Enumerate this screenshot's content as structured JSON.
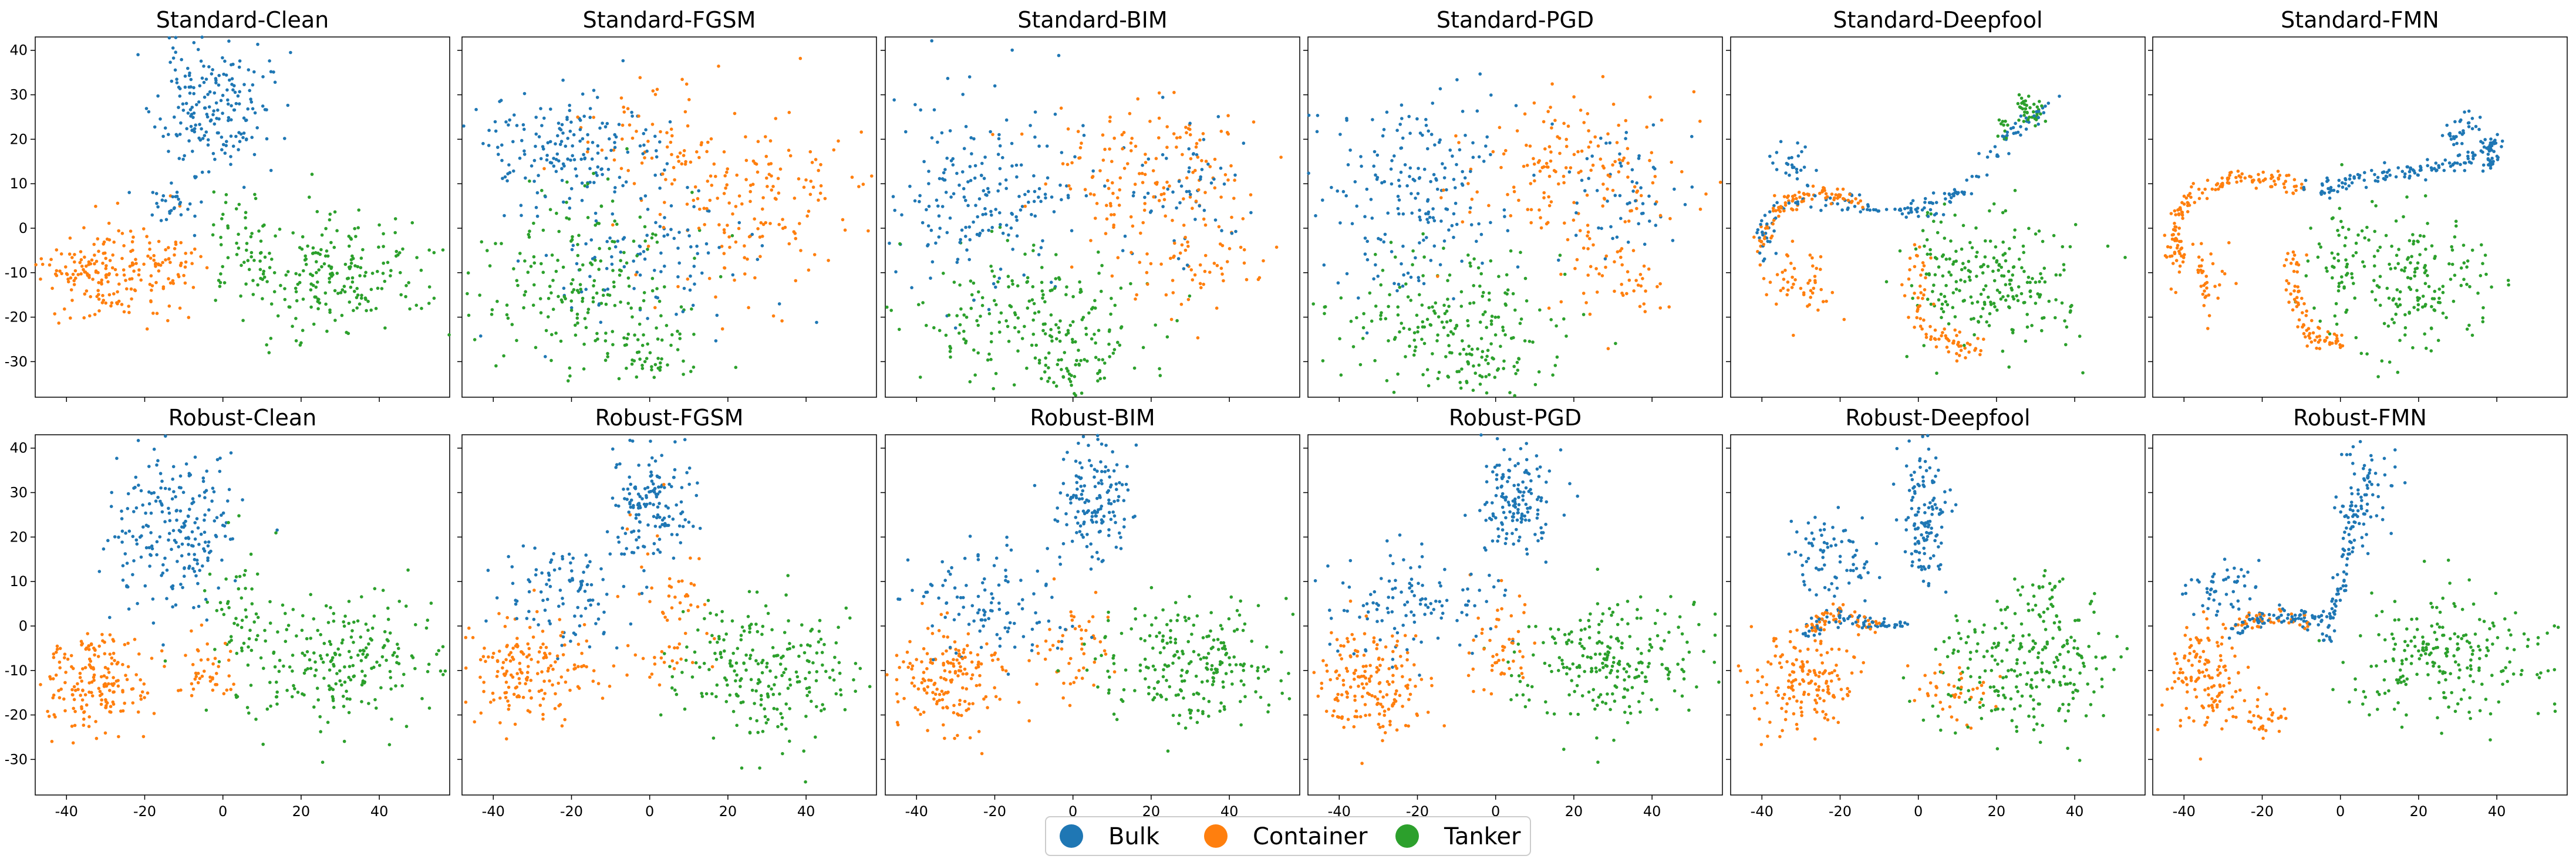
{
  "chart_data": {
    "type": "scatter",
    "layout": "2x6 grid of t-SNE embeddings, shared x and y axes",
    "xlim": [
      -48,
      58
    ],
    "ylim": [
      -38,
      43
    ],
    "xticks": [
      -40,
      -20,
      0,
      20,
      40
    ],
    "yticks": [
      -30,
      -20,
      -10,
      0,
      10,
      20,
      30,
      40
    ],
    "legend": {
      "placement": "bottom-center",
      "entries": [
        {
          "label": "Bulk",
          "color": "#1f77b4"
        },
        {
          "label": "Container",
          "color": "#ff7f0e"
        },
        {
          "label": "Tanker",
          "color": "#2ca02c"
        }
      ]
    },
    "panels": [
      {
        "title": "Standard-Clean",
        "row": 0,
        "col": 0,
        "seed": 11,
        "clusters": [
          {
            "class": "Bulk",
            "cx": -3,
            "cy": 27,
            "sx": 7,
            "sy": 7,
            "n": 200
          },
          {
            "class": "Bulk",
            "cx": -14,
            "cy": 5,
            "sx": 4,
            "sy": 4,
            "n": 30
          },
          {
            "class": "Container",
            "cx": -30,
            "cy": -10,
            "sx": 8,
            "sy": 5,
            "n": 180
          },
          {
            "class": "Container",
            "cx": -12,
            "cy": -7,
            "sx": 4,
            "sy": 5,
            "n": 40
          },
          {
            "class": "Tanker",
            "cx": 28,
            "cy": -10,
            "sx": 13,
            "sy": 7,
            "n": 220
          },
          {
            "class": "Tanker",
            "cx": 3,
            "cy": -2,
            "sx": 4,
            "sy": 6,
            "n": 40
          }
        ]
      },
      {
        "title": "Standard-FGSM",
        "row": 0,
        "col": 1,
        "seed": 23,
        "clusters": [
          {
            "class": "Bulk",
            "cx": -22,
            "cy": 18,
            "sx": 12,
            "sy": 6,
            "n": 160
          },
          {
            "class": "Bulk",
            "cx": -5,
            "cy": -5,
            "sx": 14,
            "sy": 10,
            "n": 120
          },
          {
            "class": "Container",
            "cx": 25,
            "cy": 5,
            "sx": 12,
            "sy": 10,
            "n": 160
          },
          {
            "class": "Container",
            "cx": 0,
            "cy": 20,
            "sx": 10,
            "sy": 6,
            "n": 60
          },
          {
            "class": "Tanker",
            "cx": -18,
            "cy": -12,
            "sx": 14,
            "sy": 10,
            "n": 200
          },
          {
            "class": "Tanker",
            "cx": 0,
            "cy": -28,
            "sx": 6,
            "sy": 4,
            "n": 50
          }
        ]
      },
      {
        "title": "Standard-BIM",
        "row": 0,
        "col": 2,
        "seed": 37,
        "clusters": [
          {
            "class": "Bulk",
            "cx": -22,
            "cy": 8,
            "sx": 12,
            "sy": 11,
            "n": 200
          },
          {
            "class": "Bulk",
            "cx": 30,
            "cy": 8,
            "sx": 9,
            "sy": 7,
            "n": 60
          },
          {
            "class": "Container",
            "cx": 20,
            "cy": 12,
            "sx": 14,
            "sy": 9,
            "n": 160
          },
          {
            "class": "Container",
            "cx": 30,
            "cy": -10,
            "sx": 8,
            "sy": 5,
            "n": 50
          },
          {
            "class": "Tanker",
            "cx": -10,
            "cy": -20,
            "sx": 16,
            "sy": 8,
            "n": 200
          },
          {
            "class": "Tanker",
            "cx": -2,
            "cy": -32,
            "sx": 5,
            "sy": 3,
            "n": 40
          }
        ]
      },
      {
        "title": "Standard-PGD",
        "row": 0,
        "col": 3,
        "seed": 53,
        "clusters": [
          {
            "class": "Bulk",
            "cx": -22,
            "cy": 8,
            "sx": 12,
            "sy": 11,
            "n": 200
          },
          {
            "class": "Bulk",
            "cx": 32,
            "cy": 8,
            "sx": 8,
            "sy": 7,
            "n": 60
          },
          {
            "class": "Container",
            "cx": 20,
            "cy": 12,
            "sx": 14,
            "sy": 9,
            "n": 160
          },
          {
            "class": "Container",
            "cx": 30,
            "cy": -10,
            "sx": 8,
            "sy": 5,
            "n": 50
          },
          {
            "class": "Tanker",
            "cx": -10,
            "cy": -20,
            "sx": 16,
            "sy": 8,
            "n": 200
          },
          {
            "class": "Tanker",
            "cx": -4,
            "cy": -32,
            "sx": 5,
            "sy": 3,
            "n": 40
          }
        ]
      },
      {
        "title": "Standard-Deepfool",
        "row": 0,
        "col": 4,
        "seed": 71,
        "curves": [
          {
            "class": "Bulk",
            "n": 160,
            "spread": 1.2,
            "points": [
              [
                -38,
                -8
              ],
              [
                -40,
                0
              ],
              [
                -35,
                6
              ],
              [
                -20,
                6
              ],
              [
                -5,
                4
              ],
              [
                5,
                5
              ],
              [
                15,
                12
              ],
              [
                25,
                22
              ],
              [
                33,
                28
              ]
            ]
          },
          {
            "class": "Container",
            "n": 90,
            "spread": 1.2,
            "points": [
              [
                -40,
                -5
              ],
              [
                -36,
                5
              ],
              [
                -25,
                8
              ],
              [
                -15,
                6
              ]
            ]
          },
          {
            "class": "Container",
            "n": 80,
            "spread": 1.4,
            "points": [
              [
                0,
                -5
              ],
              [
                -1,
                -15
              ],
              [
                3,
                -24
              ],
              [
                10,
                -27
              ],
              [
                15,
                -27
              ]
            ]
          },
          {
            "class": "Tanker",
            "n": 50,
            "spread": 1.5,
            "points": [
              [
                20,
                20
              ],
              [
                28,
                28
              ],
              [
                30,
                25
              ]
            ]
          }
        ],
        "clusters": [
          {
            "class": "Bulk",
            "cx": -33,
            "cy": 15,
            "sx": 3,
            "sy": 3,
            "n": 25
          },
          {
            "class": "Container",
            "cx": -30,
            "cy": -12,
            "sx": 5,
            "sy": 4,
            "n": 50
          },
          {
            "class": "Tanker",
            "cx": 22,
            "cy": -12,
            "sx": 10,
            "sy": 7,
            "n": 180
          },
          {
            "class": "Tanker",
            "cx": 5,
            "cy": -8,
            "sx": 4,
            "sy": 7,
            "n": 50
          }
        ]
      },
      {
        "title": "Standard-FMN",
        "row": 0,
        "col": 5,
        "seed": 89,
        "curves": [
          {
            "class": "Container",
            "n": 140,
            "spread": 1.0,
            "points": [
              [
                -42,
                -8
              ],
              [
                -42,
                2
              ],
              [
                -38,
                8
              ],
              [
                -28,
                11
              ],
              [
                -18,
                11
              ],
              [
                -10,
                9
              ]
            ]
          },
          {
            "class": "Bulk",
            "n": 160,
            "spread": 1.0,
            "points": [
              [
                -8,
                8
              ],
              [
                5,
                11
              ],
              [
                20,
                13
              ],
              [
                32,
                15
              ],
              [
                40,
                20
              ],
              [
                38,
                14
              ]
            ]
          },
          {
            "class": "Container",
            "n": 80,
            "spread": 1.3,
            "points": [
              [
                -12,
                -5
              ],
              [
                -12,
                -15
              ],
              [
                -8,
                -24
              ],
              [
                0,
                -26
              ]
            ]
          },
          {
            "class": "Bulk",
            "n": 30,
            "spread": 1.5,
            "points": [
              [
                28,
                20
              ],
              [
                34,
                24
              ]
            ]
          }
        ],
        "clusters": [
          {
            "class": "Container",
            "cx": -36,
            "cy": -10,
            "sx": 4,
            "sy": 4,
            "n": 40
          },
          {
            "class": "Tanker",
            "cx": 18,
            "cy": -12,
            "sx": 10,
            "sy": 8,
            "n": 180
          },
          {
            "class": "Tanker",
            "cx": 0,
            "cy": -8,
            "sx": 4,
            "sy": 7,
            "n": 40
          }
        ]
      },
      {
        "title": "Robust-Clean",
        "row": 1,
        "col": 0,
        "seed": 101,
        "clusters": [
          {
            "class": "Bulk",
            "cx": -12,
            "cy": 22,
            "sx": 8,
            "sy": 9,
            "n": 220
          },
          {
            "class": "Container",
            "cx": -32,
            "cy": -12,
            "sx": 7,
            "sy": 6,
            "n": 190
          },
          {
            "class": "Container",
            "cx": -4,
            "cy": -10,
            "sx": 4,
            "sy": 5,
            "n": 40
          },
          {
            "class": "Tanker",
            "cx": 30,
            "cy": -8,
            "sx": 13,
            "sy": 7,
            "n": 230
          },
          {
            "class": "Tanker",
            "cx": 5,
            "cy": 2,
            "sx": 4,
            "sy": 8,
            "n": 50
          }
        ]
      },
      {
        "title": "Robust-FGSM",
        "row": 1,
        "col": 1,
        "seed": 131,
        "clusters": [
          {
            "class": "Bulk",
            "cx": 0,
            "cy": 28,
            "sx": 5,
            "sy": 7,
            "n": 150
          },
          {
            "class": "Bulk",
            "cx": -22,
            "cy": 8,
            "sx": 8,
            "sy": 6,
            "n": 100
          },
          {
            "class": "Container",
            "cx": -30,
            "cy": -10,
            "sx": 8,
            "sy": 6,
            "n": 170
          },
          {
            "class": "Container",
            "cx": 5,
            "cy": 2,
            "sx": 5,
            "sy": 8,
            "n": 60
          },
          {
            "class": "Tanker",
            "cx": 30,
            "cy": -10,
            "sx": 12,
            "sy": 8,
            "n": 230
          }
        ]
      },
      {
        "title": "Robust-BIM",
        "row": 1,
        "col": 2,
        "seed": 157,
        "clusters": [
          {
            "class": "Bulk",
            "cx": 5,
            "cy": 28,
            "sx": 5,
            "sy": 7,
            "n": 150
          },
          {
            "class": "Bulk",
            "cx": -22,
            "cy": 5,
            "sx": 10,
            "sy": 7,
            "n": 110
          },
          {
            "class": "Container",
            "cx": -32,
            "cy": -12,
            "sx": 7,
            "sy": 6,
            "n": 170
          },
          {
            "class": "Container",
            "cx": 0,
            "cy": -5,
            "sx": 4,
            "sy": 6,
            "n": 50
          },
          {
            "class": "Tanker",
            "cx": 30,
            "cy": -8,
            "sx": 12,
            "sy": 7,
            "n": 230
          }
        ]
      },
      {
        "title": "Robust-PGD",
        "row": 1,
        "col": 3,
        "seed": 181,
        "clusters": [
          {
            "class": "Bulk",
            "cx": 5,
            "cy": 28,
            "sx": 5,
            "sy": 7,
            "n": 150
          },
          {
            "class": "Bulk",
            "cx": -22,
            "cy": 5,
            "sx": 10,
            "sy": 7,
            "n": 110
          },
          {
            "class": "Container",
            "cx": -32,
            "cy": -12,
            "sx": 7,
            "sy": 6,
            "n": 170
          },
          {
            "class": "Container",
            "cx": 0,
            "cy": -5,
            "sx": 4,
            "sy": 6,
            "n": 50
          },
          {
            "class": "Tanker",
            "cx": 30,
            "cy": -8,
            "sx": 12,
            "sy": 7,
            "n": 230
          }
        ]
      },
      {
        "title": "Robust-Deepfool",
        "row": 1,
        "col": 4,
        "seed": 211,
        "curves": [
          {
            "class": "Bulk",
            "n": 70,
            "spread": 1.0,
            "points": [
              [
                -30,
                -2
              ],
              [
                -22,
                2
              ],
              [
                -12,
                1
              ],
              [
                -4,
                0
              ]
            ]
          },
          {
            "class": "Container",
            "n": 50,
            "spread": 1.2,
            "points": [
              [
                -28,
                0
              ],
              [
                -20,
                3
              ],
              [
                -10,
                0
              ]
            ]
          }
        ],
        "clusters": [
          {
            "class": "Bulk",
            "cx": 2,
            "cy": 25,
            "sx": 3,
            "sy": 8,
            "n": 130
          },
          {
            "class": "Bulk",
            "cx": -22,
            "cy": 15,
            "sx": 5,
            "sy": 6,
            "n": 80
          },
          {
            "class": "Container",
            "cx": -30,
            "cy": -12,
            "sx": 7,
            "sy": 6,
            "n": 160
          },
          {
            "class": "Container",
            "cx": 8,
            "cy": -15,
            "sx": 5,
            "sy": 4,
            "n": 40
          },
          {
            "class": "Tanker",
            "cx": 28,
            "cy": -10,
            "sx": 12,
            "sy": 7,
            "n": 220
          },
          {
            "class": "Tanker",
            "cx": 32,
            "cy": 5,
            "sx": 5,
            "sy": 4,
            "n": 40
          }
        ]
      },
      {
        "title": "Robust-FMN",
        "row": 1,
        "col": 5,
        "seed": 239,
        "curves": [
          {
            "class": "Bulk",
            "n": 80,
            "spread": 1.0,
            "points": [
              [
                -30,
                -2
              ],
              [
                -20,
                2
              ],
              [
                -10,
                2
              ],
              [
                -2,
                2
              ]
            ]
          },
          {
            "class": "Container",
            "n": 40,
            "spread": 1.0,
            "points": [
              [
                -28,
                0
              ],
              [
                -18,
                2
              ],
              [
                -8,
                1
              ]
            ]
          },
          {
            "class": "Bulk",
            "n": 70,
            "spread": 1.2,
            "points": [
              [
                -4,
                -2
              ],
              [
                0,
                8
              ],
              [
                2,
                18
              ],
              [
                3,
                28
              ]
            ]
          }
        ],
        "clusters": [
          {
            "class": "Bulk",
            "cx": 6,
            "cy": 30,
            "sx": 4,
            "sy": 5,
            "n": 70
          },
          {
            "class": "Bulk",
            "cx": -30,
            "cy": 9,
            "sx": 6,
            "sy": 3,
            "n": 50
          },
          {
            "class": "Container",
            "cx": -34,
            "cy": -12,
            "sx": 5,
            "sy": 6,
            "n": 130
          },
          {
            "class": "Container",
            "cx": -20,
            "cy": -20,
            "sx": 3,
            "sy": 2,
            "n": 30
          },
          {
            "class": "Tanker",
            "cx": 28,
            "cy": -8,
            "sx": 12,
            "sy": 7,
            "n": 220
          }
        ]
      }
    ]
  }
}
